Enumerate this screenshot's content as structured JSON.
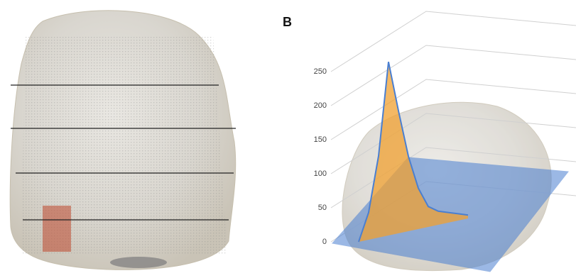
{
  "chart_data": {
    "type": "surface",
    "panel_label": "B",
    "categories": [
      null,
      null,
      null,
      null,
      null,
      null,
      null,
      null,
      null,
      null,
      null,
      null
    ],
    "series": [
      {
        "color": "#f0a030",
        "values": [
          0,
          40,
          120,
          255,
          180,
          110,
          60,
          30,
          20,
          15,
          10,
          5
        ]
      }
    ],
    "plane_color": "#4a7fd1",
    "ylim": [
      0,
      250
    ],
    "yticks": [
      0,
      50,
      100,
      150,
      200,
      250
    ],
    "grid": true
  }
}
